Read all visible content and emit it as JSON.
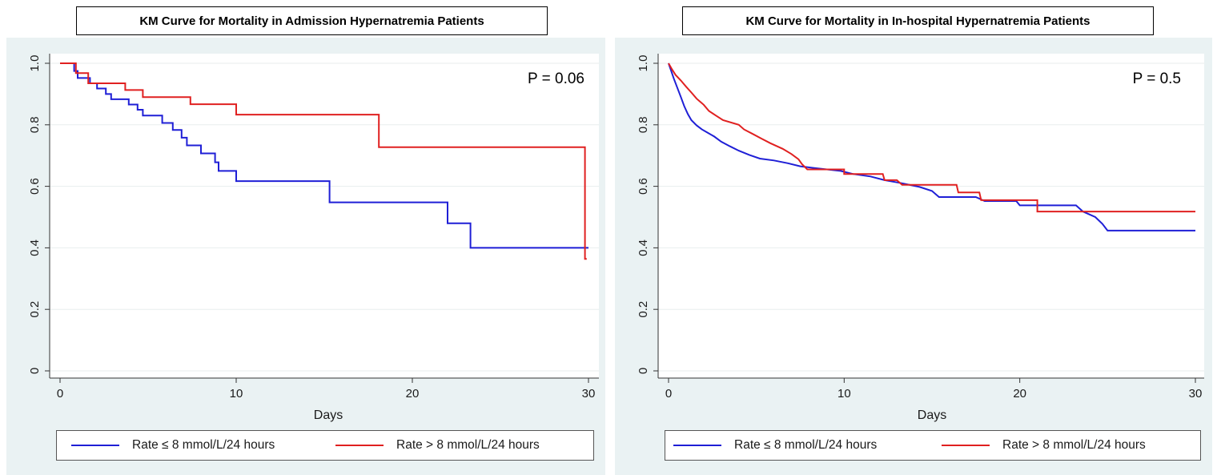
{
  "chart_data": [
    {
      "type": "line",
      "step": true,
      "title": "KM Curve for Mortality in Admission Hypernatremia Patients",
      "xlabel": "Days",
      "ylabel": "",
      "xlim": [
        0,
        30
      ],
      "ylim": [
        0,
        1
      ],
      "xticks": [
        "0",
        "10",
        "20",
        "30"
      ],
      "yticks": [
        "0",
        "0.2",
        "0.4",
        "0.6",
        "0.8",
        "1.0"
      ],
      "grid": true,
      "legend_position": "bottom",
      "annotation": "P = 0.06",
      "series": [
        {
          "name": "Rate ≤ 8 mmol/L/24 hours",
          "color": "#1f1fd6",
          "points": [
            [
              0,
              1.0
            ],
            [
              0.8,
              1.0
            ],
            [
              0.8,
              0.975
            ],
            [
              1.0,
              0.975
            ],
            [
              1.0,
              0.952
            ],
            [
              1.7,
              0.952
            ],
            [
              1.7,
              0.935
            ],
            [
              2.1,
              0.935
            ],
            [
              2.1,
              0.918
            ],
            [
              2.6,
              0.918
            ],
            [
              2.6,
              0.9
            ],
            [
              2.9,
              0.9
            ],
            [
              2.9,
              0.883
            ],
            [
              3.9,
              0.883
            ],
            [
              3.9,
              0.866
            ],
            [
              4.4,
              0.866
            ],
            [
              4.4,
              0.849
            ],
            [
              4.7,
              0.849
            ],
            [
              4.7,
              0.83
            ],
            [
              5.8,
              0.83
            ],
            [
              5.8,
              0.806
            ],
            [
              6.4,
              0.806
            ],
            [
              6.4,
              0.783
            ],
            [
              6.9,
              0.783
            ],
            [
              6.9,
              0.758
            ],
            [
              7.2,
              0.758
            ],
            [
              7.2,
              0.733
            ],
            [
              8.0,
              0.733
            ],
            [
              8.0,
              0.707
            ],
            [
              8.8,
              0.707
            ],
            [
              8.8,
              0.678
            ],
            [
              9.0,
              0.678
            ],
            [
              9.0,
              0.65
            ],
            [
              10.0,
              0.65
            ],
            [
              10.0,
              0.617
            ],
            [
              15.3,
              0.617
            ],
            [
              15.3,
              0.548
            ],
            [
              22.0,
              0.548
            ],
            [
              22.0,
              0.48
            ],
            [
              23.3,
              0.48
            ],
            [
              23.3,
              0.4
            ],
            [
              30.0,
              0.4
            ]
          ]
        },
        {
          "name": "Rate > 8 mmol/L/24 hours",
          "color": "#e02020",
          "points": [
            [
              0,
              1.0
            ],
            [
              0.9,
              1.0
            ],
            [
              0.9,
              0.968
            ],
            [
              1.6,
              0.968
            ],
            [
              1.6,
              0.935
            ],
            [
              3.7,
              0.935
            ],
            [
              3.7,
              0.913
            ],
            [
              4.7,
              0.913
            ],
            [
              4.7,
              0.89
            ],
            [
              7.4,
              0.89
            ],
            [
              7.4,
              0.867
            ],
            [
              10.0,
              0.867
            ],
            [
              10.0,
              0.833
            ],
            [
              18.1,
              0.833
            ],
            [
              18.1,
              0.727
            ],
            [
              29.8,
              0.727
            ],
            [
              29.8,
              0.364
            ],
            [
              29.9,
              0.364
            ]
          ]
        }
      ]
    },
    {
      "type": "line",
      "step": true,
      "title": "KM Curve for Mortality in In-hospital Hypernatremia Patients",
      "xlabel": "Days",
      "ylabel": "",
      "xlim": [
        0,
        30
      ],
      "ylim": [
        0,
        1
      ],
      "xticks": [
        "0",
        "10",
        "20",
        "30"
      ],
      "yticks": [
        "0",
        "0.2",
        "0.4",
        "0.6",
        "0.8",
        "1.0"
      ],
      "grid": true,
      "legend_position": "bottom",
      "annotation": "P = 0.5",
      "series": [
        {
          "name": "Rate ≤ 8 mmol/L/24 hours",
          "color": "#1f1fd6",
          "points": [
            [
              0,
              1.0
            ],
            [
              0.15,
              0.975
            ],
            [
              0.3,
              0.95
            ],
            [
              0.5,
              0.92
            ],
            [
              0.7,
              0.89
            ],
            [
              0.9,
              0.86
            ],
            [
              1.1,
              0.835
            ],
            [
              1.3,
              0.815
            ],
            [
              1.6,
              0.798
            ],
            [
              1.9,
              0.785
            ],
            [
              2.2,
              0.775
            ],
            [
              2.6,
              0.762
            ],
            [
              3.0,
              0.745
            ],
            [
              3.5,
              0.73
            ],
            [
              4.0,
              0.716
            ],
            [
              4.6,
              0.702
            ],
            [
              5.2,
              0.69
            ],
            [
              6.0,
              0.684
            ],
            [
              6.8,
              0.675
            ],
            [
              7.5,
              0.665
            ],
            [
              8.5,
              0.658
            ],
            [
              9.8,
              0.65
            ],
            [
              10.5,
              0.64
            ],
            [
              11.5,
              0.632
            ],
            [
              12.3,
              0.62
            ],
            [
              13.3,
              0.61
            ],
            [
              14.3,
              0.598
            ],
            [
              15.0,
              0.585
            ],
            [
              15.4,
              0.565
            ],
            [
              17.5,
              0.565
            ],
            [
              18.0,
              0.552
            ],
            [
              19.8,
              0.552
            ],
            [
              20.0,
              0.538
            ],
            [
              23.2,
              0.538
            ],
            [
              23.6,
              0.518
            ],
            [
              24.3,
              0.5
            ],
            [
              24.7,
              0.478
            ],
            [
              25.0,
              0.456
            ],
            [
              30.0,
              0.456
            ]
          ]
        },
        {
          "name": "Rate > 8 mmol/L/24 hours",
          "color": "#e02020",
          "points": [
            [
              0,
              1.0
            ],
            [
              0.2,
              0.98
            ],
            [
              0.4,
              0.962
            ],
            [
              0.7,
              0.944
            ],
            [
              1.0,
              0.924
            ],
            [
              1.3,
              0.905
            ],
            [
              1.6,
              0.885
            ],
            [
              2.0,
              0.865
            ],
            [
              2.3,
              0.845
            ],
            [
              2.7,
              0.83
            ],
            [
              3.1,
              0.815
            ],
            [
              4.0,
              0.8
            ],
            [
              4.3,
              0.785
            ],
            [
              4.8,
              0.77
            ],
            [
              5.3,
              0.755
            ],
            [
              5.8,
              0.74
            ],
            [
              6.5,
              0.722
            ],
            [
              7.0,
              0.705
            ],
            [
              7.4,
              0.688
            ],
            [
              7.6,
              0.672
            ],
            [
              7.9,
              0.655
            ],
            [
              10.0,
              0.655
            ],
            [
              10.0,
              0.64
            ],
            [
              12.2,
              0.64
            ],
            [
              12.3,
              0.62
            ],
            [
              13.0,
              0.62
            ],
            [
              13.3,
              0.605
            ],
            [
              16.4,
              0.605
            ],
            [
              16.5,
              0.58
            ],
            [
              17.7,
              0.58
            ],
            [
              17.8,
              0.555
            ],
            [
              21.0,
              0.555
            ],
            [
              21.0,
              0.518
            ],
            [
              30.0,
              0.518
            ]
          ]
        }
      ]
    }
  ]
}
